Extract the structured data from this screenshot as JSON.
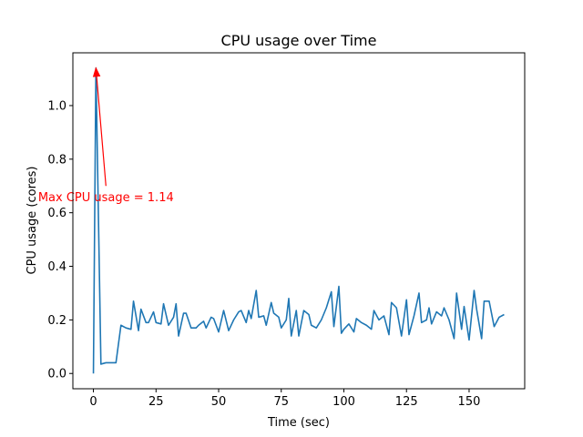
{
  "chart_data": {
    "type": "line",
    "title": "CPU usage over Time",
    "xlabel": "Time (sec)",
    "ylabel": "CPU usage (cores)",
    "xlim": [
      -8.2,
      172.2
    ],
    "ylim": [
      -0.057,
      1.197
    ],
    "x_ticks": [
      0,
      25,
      50,
      75,
      100,
      125,
      150
    ],
    "y_ticks": [
      0.0,
      0.2,
      0.4,
      0.6,
      0.8,
      1.0
    ],
    "y_tick_labels": [
      "0.0",
      "0.2",
      "0.4",
      "0.6",
      "0.8",
      "1.0"
    ],
    "grid": false,
    "legend": "none",
    "series": [
      {
        "color": "#1f77b4",
        "x": [
          0,
          1,
          3,
          5,
          7,
          9,
          11,
          13,
          15,
          16,
          18,
          19,
          21,
          22,
          24,
          25,
          27,
          28,
          30,
          32,
          33,
          34,
          36,
          37,
          39,
          41,
          42,
          44,
          45,
          47,
          48,
          50,
          52,
          54,
          56,
          58,
          59,
          61,
          62,
          63,
          65,
          66,
          68,
          69,
          71,
          72,
          74,
          75,
          77,
          78,
          79,
          81,
          82,
          84,
          86,
          87,
          89,
          91,
          93,
          95,
          96,
          98,
          99,
          100,
          102,
          104,
          105,
          107,
          109,
          111,
          112,
          114,
          116,
          118,
          119,
          121,
          123,
          125,
          126,
          128,
          130,
          131,
          133,
          134,
          135,
          137,
          139,
          140,
          142,
          144,
          145,
          147,
          148,
          150,
          152,
          153,
          155,
          156,
          158,
          160,
          162,
          164
        ],
        "y": [
          0.0,
          1.14,
          0.035,
          0.04,
          0.04,
          0.04,
          0.18,
          0.17,
          0.165,
          0.27,
          0.16,
          0.24,
          0.19,
          0.19,
          0.23,
          0.19,
          0.185,
          0.26,
          0.18,
          0.21,
          0.26,
          0.14,
          0.225,
          0.225,
          0.17,
          0.17,
          0.18,
          0.195,
          0.17,
          0.21,
          0.205,
          0.155,
          0.235,
          0.16,
          0.2,
          0.23,
          0.235,
          0.19,
          0.235,
          0.205,
          0.31,
          0.21,
          0.215,
          0.18,
          0.265,
          0.225,
          0.21,
          0.17,
          0.2,
          0.28,
          0.14,
          0.235,
          0.14,
          0.235,
          0.22,
          0.18,
          0.17,
          0.2,
          0.245,
          0.305,
          0.175,
          0.325,
          0.15,
          0.165,
          0.185,
          0.155,
          0.205,
          0.19,
          0.18,
          0.165,
          0.235,
          0.2,
          0.215,
          0.145,
          0.265,
          0.245,
          0.14,
          0.275,
          0.145,
          0.215,
          0.3,
          0.19,
          0.2,
          0.245,
          0.185,
          0.23,
          0.215,
          0.245,
          0.2,
          0.13,
          0.3,
          0.165,
          0.25,
          0.125,
          0.31,
          0.24,
          0.13,
          0.27,
          0.27,
          0.175,
          0.21,
          0.22
        ]
      }
    ],
    "annotation": {
      "text": "Max CPU usage = 1.14",
      "color": "#ff0000",
      "point": [
        1,
        1.14
      ],
      "text_point": [
        5,
        0.7
      ]
    }
  }
}
